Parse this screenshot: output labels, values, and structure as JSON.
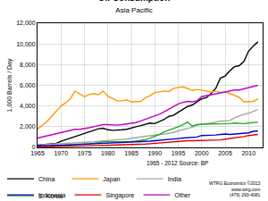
{
  "chart_data": {
    "type": "line",
    "title": "Oil Consumption",
    "subtitle": "Asia Pacific",
    "y_label": "1,000 Barrels / Day",
    "source": "1965 - 2012 Source: BP",
    "credit": [
      "WTRG Economics ©2013",
      "www.wtrg.com",
      "(479) 293-4081"
    ],
    "x": [
      1965,
      1966,
      1967,
      1968,
      1969,
      1970,
      1971,
      1972,
      1973,
      1974,
      1975,
      1976,
      1977,
      1978,
      1979,
      1980,
      1981,
      1982,
      1983,
      1984,
      1985,
      1986,
      1987,
      1988,
      1989,
      1990,
      1991,
      1992,
      1993,
      1994,
      1995,
      1996,
      1997,
      1998,
      1999,
      2000,
      2001,
      2002,
      2003,
      2004,
      2005,
      2006,
      2007,
      2008,
      2009,
      2010,
      2011,
      2012
    ],
    "series": [
      {
        "name": "China",
        "color": "#000000",
        "values": [
          220,
          260,
          280,
          300,
          400,
          600,
          750,
          850,
          1050,
          1150,
          1350,
          1500,
          1650,
          1800,
          1850,
          1700,
          1650,
          1650,
          1700,
          1750,
          1900,
          2000,
          2100,
          2250,
          2350,
          2300,
          2500,
          2700,
          3000,
          3100,
          3400,
          3650,
          3950,
          4100,
          4400,
          4700,
          4800,
          5200,
          5700,
          6700,
          6900,
          7400,
          7800,
          7900,
          8300,
          9300,
          9800,
          10200
        ]
      },
      {
        "name": "Japan",
        "color": "#ff9900",
        "values": [
          1750,
          2100,
          2500,
          3000,
          3500,
          4000,
          4300,
          4700,
          5450,
          5200,
          4900,
          5100,
          5200,
          5100,
          5450,
          4950,
          4750,
          4500,
          4500,
          4600,
          4400,
          4450,
          4450,
          4800,
          5000,
          5300,
          5350,
          5450,
          5400,
          5700,
          5800,
          5850,
          5700,
          5500,
          5600,
          5550,
          5450,
          5350,
          5450,
          5300,
          5350,
          5200,
          5050,
          4850,
          4400,
          4450,
          4450,
          4700
        ]
      },
      {
        "name": "India",
        "color": "#a6a6a6",
        "values": [
          250,
          270,
          290,
          320,
          350,
          400,
          420,
          450,
          470,
          480,
          490,
          500,
          540,
          590,
          620,
          650,
          680,
          720,
          760,
          800,
          880,
          950,
          1000,
          1080,
          1150,
          1200,
          1250,
          1300,
          1350,
          1450,
          1600,
          1700,
          1800,
          1950,
          2150,
          2250,
          2300,
          2350,
          2450,
          2550,
          2550,
          2600,
          2850,
          3050,
          3200,
          3300,
          3450,
          3650
        ]
      },
      {
        "name": "S. Korea",
        "color": "#22b022",
        "values": [
          30,
          40,
          60,
          90,
          140,
          200,
          230,
          260,
          290,
          300,
          300,
          350,
          400,
          480,
          540,
          550,
          540,
          530,
          540,
          550,
          560,
          600,
          650,
          750,
          900,
          1050,
          1250,
          1500,
          1650,
          1800,
          2000,
          2200,
          2450,
          2050,
          2200,
          2250,
          2250,
          2300,
          2300,
          2300,
          2300,
          2300,
          2350,
          2300,
          2300,
          2350,
          2400,
          2450
        ]
      },
      {
        "name": "Indonesia",
        "color": "#0000cc",
        "values": [
          150,
          155,
          160,
          170,
          185,
          200,
          220,
          250,
          270,
          290,
          300,
          320,
          350,
          380,
          400,
          400,
          430,
          450,
          460,
          470,
          480,
          500,
          520,
          550,
          600,
          650,
          680,
          720,
          770,
          800,
          850,
          900,
          950,
          950,
          1000,
          1150,
          1150,
          1200,
          1200,
          1250,
          1300,
          1250,
          1300,
          1300,
          1350,
          1400,
          1550,
          1600
        ]
      },
      {
        "name": "Singapore",
        "color": "#dd0000",
        "values": [
          50,
          55,
          60,
          70,
          80,
          100,
          110,
          120,
          140,
          140,
          150,
          160,
          170,
          180,
          190,
          200,
          220,
          230,
          240,
          250,
          260,
          280,
          300,
          330,
          360,
          400,
          450,
          500,
          550,
          580,
          600,
          620,
          650,
          650,
          660,
          650,
          700,
          720,
          700,
          720,
          800,
          850,
          900,
          1000,
          1050,
          1150,
          1200,
          1250
        ]
      },
      {
        "name": "Other",
        "color": "#c000c0",
        "values": [
          900,
          1000,
          1100,
          1200,
          1300,
          1400,
          1500,
          1600,
          1750,
          1750,
          1800,
          1900,
          2000,
          2100,
          2200,
          2200,
          2150,
          2150,
          2200,
          2250,
          2300,
          2400,
          2550,
          2700,
          2850,
          3000,
          3200,
          3450,
          3700,
          3950,
          4200,
          4350,
          4450,
          4400,
          4500,
          4900,
          5000,
          5050,
          5150,
          5300,
          5400,
          5450,
          5550,
          5550,
          5650,
          5800,
          5900,
          6000
        ]
      }
    ],
    "xlim": [
      1965,
      2013
    ],
    "xticks": [
      1965,
      1970,
      1975,
      1980,
      1985,
      1990,
      1995,
      2000,
      2005,
      2010
    ],
    "ylim": [
      0,
      12000
    ],
    "yticks": [
      0,
      {
        "value": 2000,
        "label": "2,000"
      },
      {
        "value": 4000,
        "label": "4,000"
      },
      {
        "value": 6000,
        "label": "6,000"
      },
      {
        "value": 8000,
        "label": "8,000"
      },
      {
        "value": 10000,
        "label": "10,000"
      },
      {
        "value": 12000,
        "label": "12,000"
      }
    ],
    "grid": true,
    "legend": "bottom"
  }
}
